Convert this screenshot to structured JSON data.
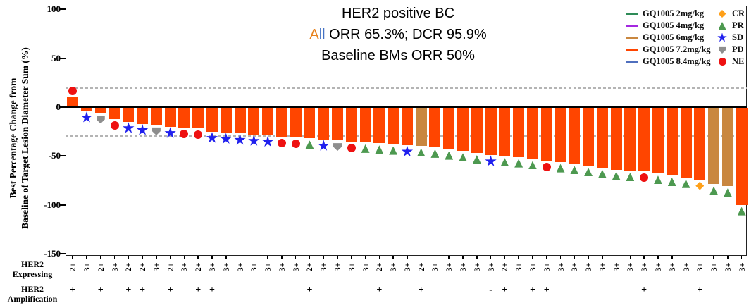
{
  "title": {
    "line1": "HER2 positive BC",
    "line2_word_a": "A",
    "line2_word_b": "ll",
    "line2_rest": " ORR 65.3%; DCR 95.9%",
    "line3": "Baseline BMs ORR 50%",
    "word_a_color": "#E8821C",
    "word_b_color": "#4472C4"
  },
  "y_axis": {
    "label_line1": "Best Percentage Change from",
    "label_line2": "Baseline of Target Lesion Diameter Sum (%)",
    "ticks": [
      100,
      50,
      0,
      -50,
      -100,
      -150
    ]
  },
  "her2_rows": {
    "expressing_label_line1": "HER2",
    "expressing_label_line2": "Expressing",
    "amplification_label_line1": "HER2",
    "amplification_label_line2": "Amplification"
  },
  "legend": {
    "doses": [
      {
        "label": "GQ1005 2mg/kg",
        "color": "#2E8B57"
      },
      {
        "label": "GQ1005 4mg/kg",
        "color": "#A428E0"
      },
      {
        "label": "GQ1005 6mg/kg",
        "color": "#C9873F"
      },
      {
        "label": "GQ1005 7.2mg/kg",
        "color": "#FF4500"
      },
      {
        "label": "GQ1005 8.4mg/kg",
        "color": "#4F6FBE"
      }
    ],
    "responses": [
      {
        "label": "CR",
        "marker": "diamond",
        "color": "#FFA019"
      },
      {
        "label": "PR",
        "marker": "triangle",
        "color": "#4D9950"
      },
      {
        "label": "SD",
        "marker": "star",
        "color": "#2020EE"
      },
      {
        "label": "PD",
        "marker": "pent",
        "color": "#8E8E8E"
      },
      {
        "label": "NE",
        "marker": "circle",
        "color": "#EE1111"
      }
    ]
  },
  "chart_data": {
    "type": "bar",
    "title": "HER2 positive BC; All ORR 65.3%; DCR 95.9%; Baseline BMs ORR 50%",
    "ylabel": "Best Percentage Change from Baseline of Target Lesion Diameter Sum (%)",
    "ylim": [
      -150,
      100
    ],
    "reference_lines": [
      20,
      -30
    ],
    "grid": false,
    "legend_position": "top-right",
    "bars": [
      {
        "value": 10,
        "dose": "7.2mg/kg",
        "response": "NE",
        "expressing": "2+",
        "amplification": "+"
      },
      {
        "value": -4,
        "dose": "7.2mg/kg",
        "response": "SD",
        "expressing": "3+",
        "amplification": ""
      },
      {
        "value": -6,
        "dose": "7.2mg/kg",
        "response": "PD",
        "expressing": "2+",
        "amplification": "+"
      },
      {
        "value": -12,
        "dose": "7.2mg/kg",
        "response": "NE",
        "expressing": "3+",
        "amplification": ""
      },
      {
        "value": -15,
        "dose": "7.2mg/kg",
        "response": "SD",
        "expressing": "2+",
        "amplification": "+"
      },
      {
        "value": -17,
        "dose": "7.2mg/kg",
        "response": "SD",
        "expressing": "2+",
        "amplification": "+"
      },
      {
        "value": -18,
        "dose": "7.2mg/kg",
        "response": "PD",
        "expressing": "3+",
        "amplification": ""
      },
      {
        "value": -20,
        "dose": "7.2mg/kg",
        "response": "SD",
        "expressing": "2+",
        "amplification": "+"
      },
      {
        "value": -21,
        "dose": "7.2mg/kg",
        "response": "NE",
        "expressing": "3+",
        "amplification": ""
      },
      {
        "value": -22,
        "dose": "7.2mg/kg",
        "response": "NE",
        "expressing": "2+",
        "amplification": "+"
      },
      {
        "value": -25,
        "dose": "7.2mg/kg",
        "response": "SD",
        "expressing": "3+",
        "amplification": "+"
      },
      {
        "value": -26,
        "dose": "7.2mg/kg",
        "response": "SD",
        "expressing": "3+",
        "amplification": ""
      },
      {
        "value": -27,
        "dose": "7.2mg/kg",
        "response": "SD",
        "expressing": "3+",
        "amplification": ""
      },
      {
        "value": -28,
        "dose": "7.2mg/kg",
        "response": "SD",
        "expressing": "3+",
        "amplification": ""
      },
      {
        "value": -29,
        "dose": "7.2mg/kg",
        "response": "SD",
        "expressing": "3+",
        "amplification": ""
      },
      {
        "value": -30,
        "dose": "7.2mg/kg",
        "response": "NE",
        "expressing": "3+",
        "amplification": ""
      },
      {
        "value": -31,
        "dose": "7.2mg/kg",
        "response": "NE",
        "expressing": "3+",
        "amplification": ""
      },
      {
        "value": -32,
        "dose": "7.2mg/kg",
        "response": "PR",
        "expressing": "2+",
        "amplification": "+"
      },
      {
        "value": -33,
        "dose": "7.2mg/kg",
        "response": "SD",
        "expressing": "3+",
        "amplification": ""
      },
      {
        "value": -34,
        "dose": "7.2mg/kg",
        "response": "PD",
        "expressing": "3+",
        "amplification": ""
      },
      {
        "value": -35,
        "dose": "7.2mg/kg",
        "response": "NE",
        "expressing": "3+",
        "amplification": ""
      },
      {
        "value": -36,
        "dose": "7.2mg/kg",
        "response": "PR",
        "expressing": "3+",
        "amplification": ""
      },
      {
        "value": -37,
        "dose": "7.2mg/kg",
        "response": "PR",
        "expressing": "2+",
        "amplification": "+"
      },
      {
        "value": -38,
        "dose": "7.2mg/kg",
        "response": "PR",
        "expressing": "3+",
        "amplification": ""
      },
      {
        "value": -39,
        "dose": "7.2mg/kg",
        "response": "SD",
        "expressing": "3+",
        "amplification": ""
      },
      {
        "value": -40,
        "dose": "6mg/kg",
        "response": "PR",
        "expressing": "2+",
        "amplification": "+"
      },
      {
        "value": -41,
        "dose": "7.2mg/kg",
        "response": "PR",
        "expressing": "3+",
        "amplification": ""
      },
      {
        "value": -43,
        "dose": "7.2mg/kg",
        "response": "PR",
        "expressing": "3+",
        "amplification": ""
      },
      {
        "value": -45,
        "dose": "7.2mg/kg",
        "response": "PR",
        "expressing": "3+",
        "amplification": ""
      },
      {
        "value": -47,
        "dose": "7.2mg/kg",
        "response": "PR",
        "expressing": "3+",
        "amplification": ""
      },
      {
        "value": -49,
        "dose": "7.2mg/kg",
        "response": "SD",
        "expressing": "3+",
        "amplification": "-"
      },
      {
        "value": -50,
        "dose": "7.2mg/kg",
        "response": "PR",
        "expressing": "2+",
        "amplification": "+"
      },
      {
        "value": -51,
        "dose": "7.2mg/kg",
        "response": "PR",
        "expressing": "3+",
        "amplification": ""
      },
      {
        "value": -53,
        "dose": "7.2mg/kg",
        "response": "PR",
        "expressing": "3+",
        "amplification": "+"
      },
      {
        "value": -55,
        "dose": "7.2mg/kg",
        "response": "NE",
        "expressing": "3+",
        "amplification": "+"
      },
      {
        "value": -56,
        "dose": "7.2mg/kg",
        "response": "PR",
        "expressing": "3+",
        "amplification": ""
      },
      {
        "value": -58,
        "dose": "7.2mg/kg",
        "response": "PR",
        "expressing": "3+",
        "amplification": ""
      },
      {
        "value": -60,
        "dose": "7.2mg/kg",
        "response": "PR",
        "expressing": "3+",
        "amplification": ""
      },
      {
        "value": -62,
        "dose": "7.2mg/kg",
        "response": "PR",
        "expressing": "3+",
        "amplification": ""
      },
      {
        "value": -64,
        "dose": "7.2mg/kg",
        "response": "PR",
        "expressing": "3+",
        "amplification": ""
      },
      {
        "value": -65,
        "dose": "7.2mg/kg",
        "response": "PR",
        "expressing": "3+",
        "amplification": ""
      },
      {
        "value": -66,
        "dose": "7.2mg/kg",
        "response": "NE",
        "expressing": "3+",
        "amplification": "+"
      },
      {
        "value": -68,
        "dose": "7.2mg/kg",
        "response": "PR",
        "expressing": "3+",
        "amplification": ""
      },
      {
        "value": -70,
        "dose": "7.2mg/kg",
        "response": "PR",
        "expressing": "3+",
        "amplification": ""
      },
      {
        "value": -72,
        "dose": "7.2mg/kg",
        "response": "PR",
        "expressing": "3+",
        "amplification": ""
      },
      {
        "value": -74,
        "dose": "7.2mg/kg",
        "response": "CR",
        "expressing": "3+",
        "amplification": "+"
      },
      {
        "value": -79,
        "dose": "6mg/kg",
        "response": "PR",
        "expressing": "3+",
        "amplification": ""
      },
      {
        "value": -81,
        "dose": "6mg/kg",
        "response": "PR",
        "expressing": "3+",
        "amplification": ""
      },
      {
        "value": -100,
        "dose": "7.2mg/kg",
        "response": "PR",
        "expressing": "3+",
        "amplification": ""
      }
    ]
  }
}
